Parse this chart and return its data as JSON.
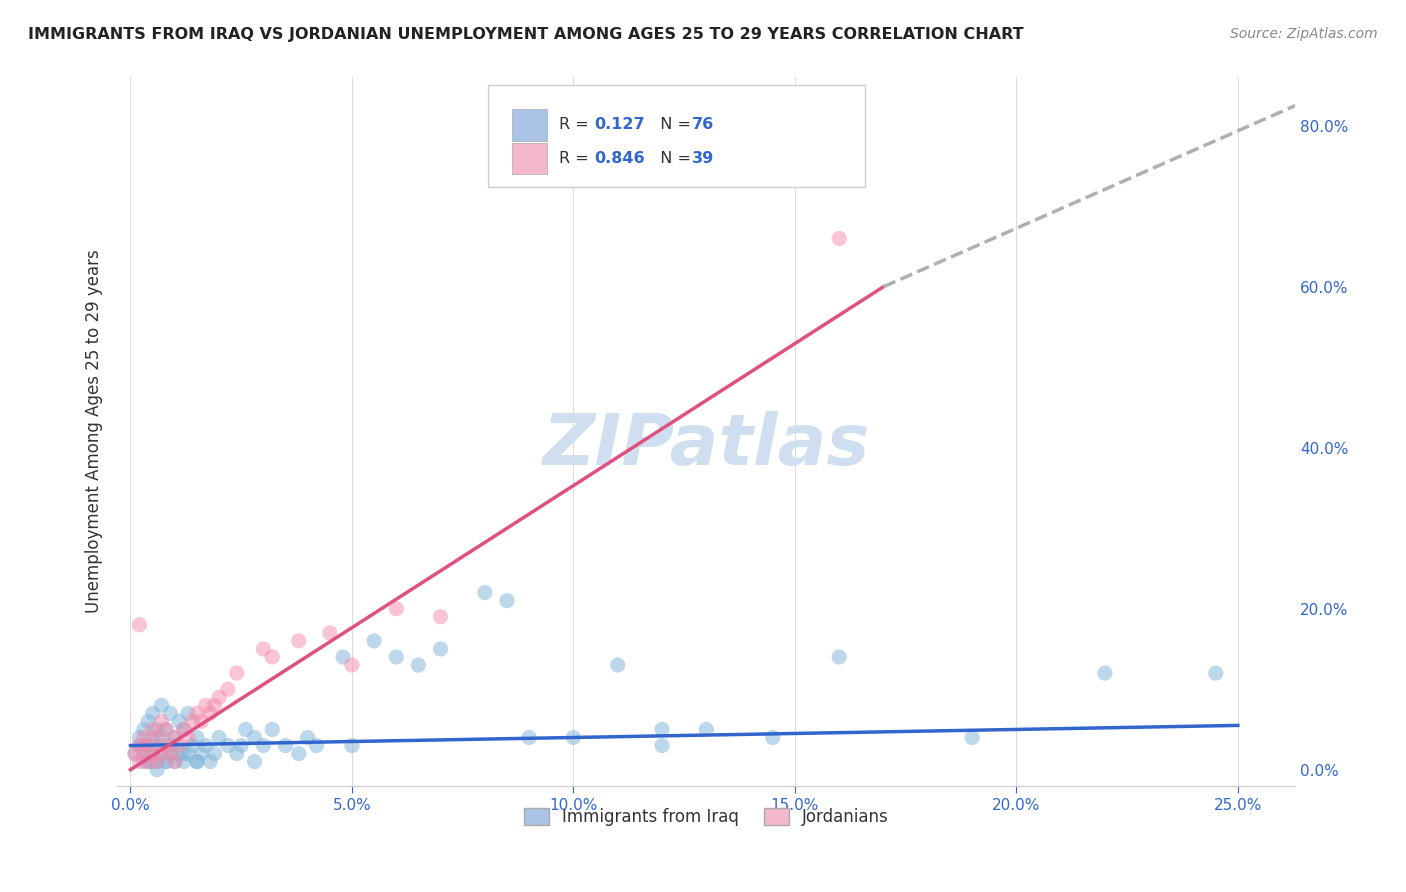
{
  "title": "IMMIGRANTS FROM IRAQ VS JORDANIAN UNEMPLOYMENT AMONG AGES 25 TO 29 YEARS CORRELATION CHART",
  "source": "Source: ZipAtlas.com",
  "ylabel": "Unemployment Among Ages 25 to 29 years",
  "xlabel_ticks": [
    "0.0%",
    "5.0%",
    "10.0%",
    "15.0%",
    "20.0%",
    "25.0%"
  ],
  "ylabel_ticks": [
    "0.0%",
    "20.0%",
    "40.0%",
    "60.0%",
    "80.0%"
  ],
  "xlim": [
    -0.003,
    0.263
  ],
  "ylim": [
    -0.02,
    0.86
  ],
  "legend1_label": "R =  0.127   N = 76",
  "legend2_label": "R =  0.846   N = 39",
  "legend_color1": "#a8c4e0",
  "legend_color2": "#f4a8c0",
  "scatter_color_blue": "#7eb3d8",
  "scatter_color_pink": "#f48aaa",
  "line_color_blue": "#3366cc",
  "line_color_pink": "#e05080",
  "line_color_dashed": "#b0b0b0",
  "watermark": "ZIPatlas",
  "watermark_color": "#d0dff0",
  "legend_box_color1": "#aac4e8",
  "legend_box_color2": "#f4b8cc",
  "blue_points_x": [
    0.001,
    0.002,
    0.002,
    0.003,
    0.003,
    0.003,
    0.004,
    0.004,
    0.004,
    0.005,
    0.005,
    0.005,
    0.006,
    0.006,
    0.006,
    0.007,
    0.007,
    0.007,
    0.008,
    0.008,
    0.009,
    0.009,
    0.009,
    0.01,
    0.01,
    0.011,
    0.011,
    0.012,
    0.012,
    0.013,
    0.013,
    0.014,
    0.015,
    0.015,
    0.016,
    0.017,
    0.018,
    0.019,
    0.02,
    0.022,
    0.024,
    0.026,
    0.028,
    0.03,
    0.032,
    0.035,
    0.038,
    0.04,
    0.042,
    0.048,
    0.055,
    0.06,
    0.065,
    0.07,
    0.08,
    0.09,
    0.1,
    0.11,
    0.12,
    0.13,
    0.05,
    0.015,
    0.025,
    0.028,
    0.085,
    0.12,
    0.145,
    0.16,
    0.19,
    0.22,
    0.003,
    0.005,
    0.006,
    0.008,
    0.012,
    0.245
  ],
  "blue_points_y": [
    0.02,
    0.03,
    0.04,
    0.02,
    0.03,
    0.05,
    0.01,
    0.03,
    0.06,
    0.02,
    0.04,
    0.07,
    0.01,
    0.03,
    0.05,
    0.02,
    0.04,
    0.08,
    0.01,
    0.05,
    0.02,
    0.03,
    0.07,
    0.01,
    0.04,
    0.02,
    0.06,
    0.01,
    0.05,
    0.02,
    0.07,
    0.03,
    0.01,
    0.04,
    0.02,
    0.03,
    0.01,
    0.02,
    0.04,
    0.03,
    0.02,
    0.05,
    0.04,
    0.03,
    0.05,
    0.03,
    0.02,
    0.04,
    0.03,
    0.14,
    0.16,
    0.14,
    0.13,
    0.15,
    0.22,
    0.04,
    0.04,
    0.13,
    0.05,
    0.05,
    0.03,
    0.01,
    0.03,
    0.01,
    0.21,
    0.03,
    0.04,
    0.14,
    0.04,
    0.12,
    0.01,
    0.01,
    0.0,
    0.01,
    0.02,
    0.12
  ],
  "pink_points_x": [
    0.001,
    0.002,
    0.002,
    0.003,
    0.003,
    0.004,
    0.004,
    0.005,
    0.005,
    0.006,
    0.006,
    0.007,
    0.007,
    0.008,
    0.008,
    0.009,
    0.01,
    0.01,
    0.011,
    0.012,
    0.013,
    0.014,
    0.015,
    0.016,
    0.017,
    0.018,
    0.019,
    0.02,
    0.022,
    0.024,
    0.03,
    0.032,
    0.038,
    0.045,
    0.05,
    0.06,
    0.07,
    0.16,
    0.002
  ],
  "pink_points_y": [
    0.02,
    0.01,
    0.03,
    0.02,
    0.04,
    0.01,
    0.03,
    0.02,
    0.05,
    0.01,
    0.04,
    0.02,
    0.06,
    0.03,
    0.05,
    0.02,
    0.01,
    0.04,
    0.03,
    0.05,
    0.04,
    0.06,
    0.07,
    0.06,
    0.08,
    0.07,
    0.08,
    0.09,
    0.1,
    0.12,
    0.15,
    0.14,
    0.16,
    0.17,
    0.13,
    0.2,
    0.19,
    0.66,
    0.18
  ],
  "blue_line_x": [
    0.0,
    0.25
  ],
  "blue_line_y": [
    0.03,
    0.055
  ],
  "pink_line_x": [
    0.0,
    0.17
  ],
  "pink_line_y": [
    0.0,
    0.6
  ],
  "dashed_line_x": [
    0.17,
    0.265
  ],
  "dashed_line_y": [
    0.6,
    0.83
  ],
  "scatter_size": 120,
  "scatter_alpha": 0.5,
  "line_width": 2.5
}
